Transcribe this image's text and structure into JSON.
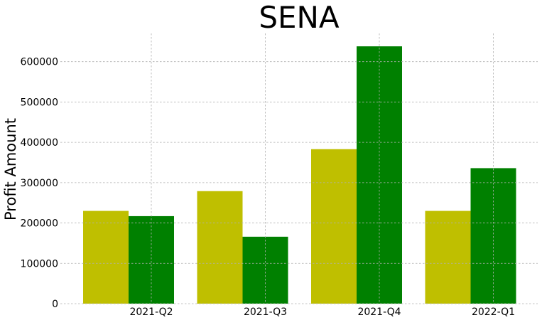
{
  "chart_data": {
    "type": "bar",
    "title": "SENA",
    "xlabel": "",
    "ylabel": "Profit Amount",
    "categories": [
      "2021-Q2",
      "2021-Q3",
      "2021-Q4",
      "2022-Q1"
    ],
    "series": [
      {
        "values": [
          230000,
          279000,
          383000,
          230000
        ],
        "color": "#bfbf00"
      },
      {
        "values": [
          217000,
          166000,
          638000,
          336000
        ],
        "color": "#008000"
      }
    ],
    "yticks": [
      0,
      100000,
      200000,
      300000,
      400000,
      500000,
      600000
    ],
    "ytick_labels": [
      "0",
      "100000",
      "200000",
      "300000",
      "400000",
      "500000",
      "600000"
    ],
    "ylim": [
      0,
      670000
    ],
    "grid": true,
    "legend": "none"
  }
}
